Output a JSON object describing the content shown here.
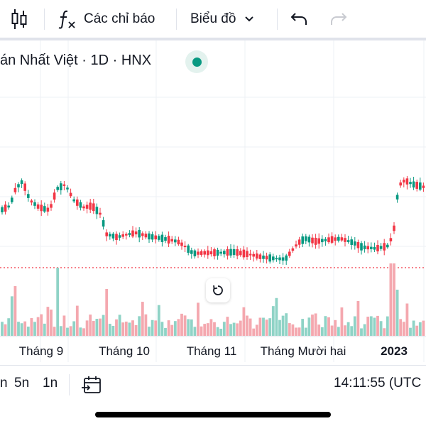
{
  "toolbar": {
    "candles_icon": "candlestick-icon",
    "indicators_label": "Các chỉ báo",
    "chart_menu_label": "Biểu đồ",
    "undo_icon": "undo-icon",
    "redo_icon": "redo-icon"
  },
  "legend": {
    "symbol_text": "án Nhất Việt · 1D · HNX",
    "status_color": "#089981"
  },
  "x_axis": {
    "labels": [
      "Tháng 9",
      "Tháng 10",
      "Tháng 11",
      "Tháng Mười hai",
      "2023"
    ]
  },
  "bottom_bar": {
    "range_5d": "5n",
    "range_1d": "1n",
    "goto_date_icon": "calendar-goto-icon",
    "clock": "14:11:55 (UTC"
  },
  "colors": {
    "up": "#089981",
    "down": "#f23645",
    "up_volume": "#8fd3c6",
    "down_volume": "#f4a8af",
    "price_line": "#f23645"
  }
}
